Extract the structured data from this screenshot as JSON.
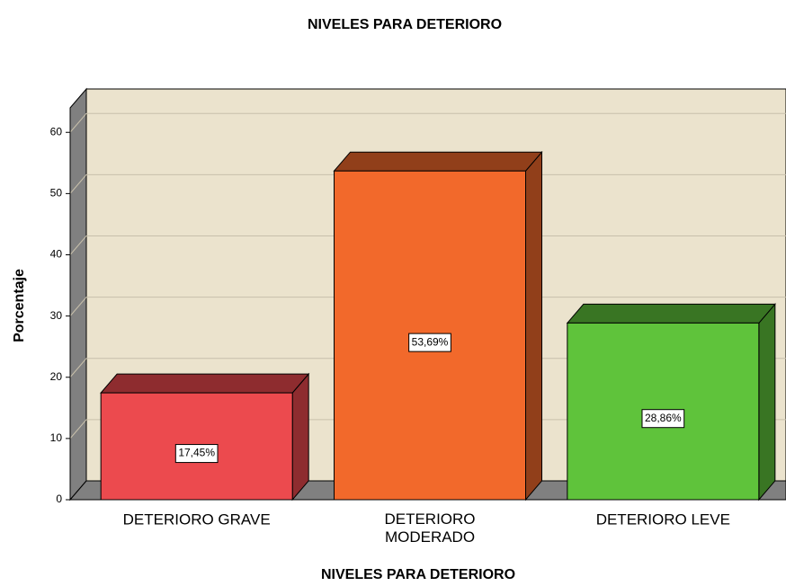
{
  "chart_data": {
    "type": "bar3d",
    "title": "NIVELES PARA DETERIORO",
    "xlabel": "NIVELES PARA DETERIORO",
    "ylabel": "Porcentaje",
    "categories": [
      "DETERIORO GRAVE",
      "DETERIORO MODERADO",
      "DETERIORO LEVE"
    ],
    "values": [
      17.45,
      53.69,
      28.86
    ],
    "value_labels": [
      "17,45%",
      "53,69%",
      "28,86%"
    ],
    "colors": [
      "#ec4a4e",
      "#f2692b",
      "#5fc33b"
    ],
    "ylim": [
      0,
      64
    ],
    "yticks": [
      0,
      10,
      20,
      30,
      40,
      50,
      60
    ],
    "grid": true
  }
}
